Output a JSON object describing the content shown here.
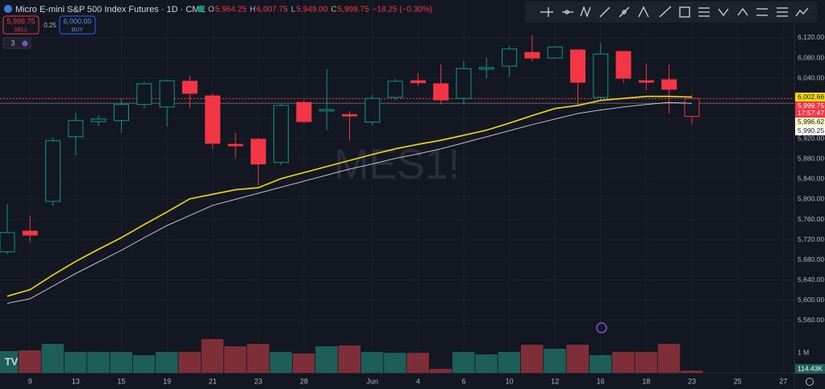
{
  "ui": {
    "title": "Micro E-mini S&P 500 Index Futures · 1D · CME",
    "ohlc": [
      {
        "key": "O",
        "text": "5,964.25"
      },
      {
        "key": "H",
        "text": "6,007.75"
      },
      {
        "key": "L",
        "text": "5,949.00"
      },
      {
        "key": "C",
        "text": "5,999.75"
      }
    ],
    "change": "−18.25 (−0.30%)",
    "sell_price": "5,999.75",
    "sell": "SELL",
    "spread": "0.25",
    "buy_price": "6,000.00",
    "buy": "BUY",
    "indicators": "3",
    "watermark": "MES1!"
  },
  "chart_data": {
    "type": "candlestick",
    "categories": [
      null,
      "9",
      null,
      "13",
      null,
      "15",
      null,
      "19",
      null,
      "21",
      null,
      "23",
      null,
      "28",
      null,
      null,
      "Jun",
      null,
      "4",
      null,
      "6",
      null,
      "10",
      null,
      "12",
      null,
      "16",
      null,
      "18",
      null,
      "23",
      null,
      "25",
      null,
      "27"
    ],
    "open": [
      5696,
      5737,
      5796,
      5924,
      5954,
      5956,
      5988,
      5983,
      6034,
      6005,
      5909,
      5919,
      5873,
      5992,
      5975,
      5968,
      5953,
      6002,
      6035,
      6029,
      6000,
      6058,
      6064,
      6091,
      6080,
      6096,
      6002,
      6093,
      6035,
      6037,
      5964.25,
      null,
      null,
      null,
      null
    ],
    "high": [
      5791,
      5768,
      5922,
      5972,
      5967,
      5999,
      6032,
      6037,
      6045,
      6010,
      5932,
      5922,
      5989,
      5997,
      6058,
      5975,
      6008,
      6039,
      6050,
      6067,
      6074,
      6080,
      6104,
      6125,
      6104,
      6096,
      6110,
      6093,
      6069,
      6067,
      6007.75,
      null,
      null,
      null,
      null
    ],
    "low": [
      5691,
      5715,
      5788,
      5887,
      5945,
      5932,
      5980,
      5945,
      5981,
      5900,
      5882,
      5828,
      5868,
      5951,
      5937,
      5917,
      5946,
      5997,
      6024,
      5988,
      5988,
      6040,
      6043,
      6074,
      6080,
      5986,
      5997,
      6031,
      6016,
      5970,
      5949,
      null,
      null,
      null,
      null
    ],
    "close": [
      5734,
      5729,
      5916,
      5956,
      5959,
      5988,
      6029,
      6035,
      6010,
      5911,
      5906,
      5870,
      5986,
      5954,
      5978,
      5965,
      6000,
      6034,
      6031,
      5997,
      6059,
      6061,
      6098,
      6080,
      6102,
      6032,
      6088,
      6040,
      6032,
      6018,
      5999.75,
      null,
      null,
      null,
      null
    ],
    "up_color": "#089981",
    "down_color": "#f23645",
    "lines": [
      {
        "color": "#f5d90a",
        "values": [
          5608,
          5621,
          5650,
          5677,
          5701,
          5724,
          5750,
          5775,
          5801,
          5810,
          5819,
          5823,
          5841,
          5853,
          5865,
          5877,
          5889,
          5900,
          5909,
          5917,
          5927,
          5937,
          5951,
          5966,
          5980,
          5986,
          5996,
          6000,
          6004,
          6004,
          6002.66,
          null,
          null,
          null,
          null
        ]
      },
      {
        "color": "#d1d4dc",
        "values": [
          5594,
          5603,
          5628,
          5653,
          5676,
          5699,
          5724,
          5748,
          5768,
          5788,
          5800,
          5812,
          5824,
          5836,
          5848,
          5860,
          5870,
          5881,
          5890,
          5900,
          5912,
          5924,
          5936,
          5948,
          5959,
          5970,
          5977,
          5983,
          5988,
          5992,
          5990.25,
          null,
          null,
          null,
          null
        ]
      }
    ],
    "ylim": [
      5456,
      6195
    ],
    "yticks": [
      {
        "value": 5560,
        "label": "5,560.00"
      },
      {
        "value": 5600,
        "label": "5,600.00"
      },
      {
        "value": 5640,
        "label": "5,640.00"
      },
      {
        "value": 5680,
        "label": "5,680.00"
      },
      {
        "value": 5720,
        "label": "5,720.00"
      },
      {
        "value": 5760,
        "label": "5,760.00"
      },
      {
        "value": 5800,
        "label": "5,800.00"
      },
      {
        "value": 5840,
        "label": "5,840.00"
      },
      {
        "value": 5880,
        "label": "5,880.00"
      },
      {
        "value": 5920,
        "label": "5,920.00"
      },
      {
        "value": 5960,
        "label": "5,960.00"
      },
      {
        "value": 6000,
        "label": "6,000.00"
      },
      {
        "value": 6040,
        "label": "6,040.00"
      },
      {
        "value": 6080,
        "label": "6,080.00"
      },
      {
        "value": 6120,
        "label": "6,120.00"
      }
    ],
    "price_labels": [
      {
        "value": 6002.66,
        "label": "6,002.66",
        "color": "#f5d90a"
      },
      {
        "value": 5999.75,
        "label": "5,999.75",
        "color": "#f23645",
        "time": "17:57:47",
        "line": "dotted"
      },
      {
        "value": 5996.62,
        "label": "5,996.62",
        "color": "#fff9c4"
      },
      {
        "value": 5990.25,
        "label": "5,990.25",
        "color": "#ffffff",
        "line": "solid"
      }
    ],
    "volume": {
      "values": [
        1080000,
        1120000,
        1440000,
        1040000,
        1040000,
        1040000,
        880000,
        1040000,
        1040000,
        1680000,
        1320000,
        1440000,
        1040000,
        960000,
        1320000,
        1360000,
        1040000,
        1000000,
        1000000,
        200000,
        1040000,
        920000,
        1040000,
        1400000,
        1200000,
        1400000,
        880000,
        1040000,
        1040000,
        1440000,
        114430,
        null,
        null,
        null,
        null
      ],
      "ylim": [
        0,
        4000000
      ],
      "yticks": [
        {
          "value": 1000000,
          "label": "1 M"
        }
      ],
      "last_label": {
        "value": 114430,
        "label": "114.43K"
      },
      "up_color": "#1e5e58",
      "down_color": "#7d2e36"
    }
  }
}
